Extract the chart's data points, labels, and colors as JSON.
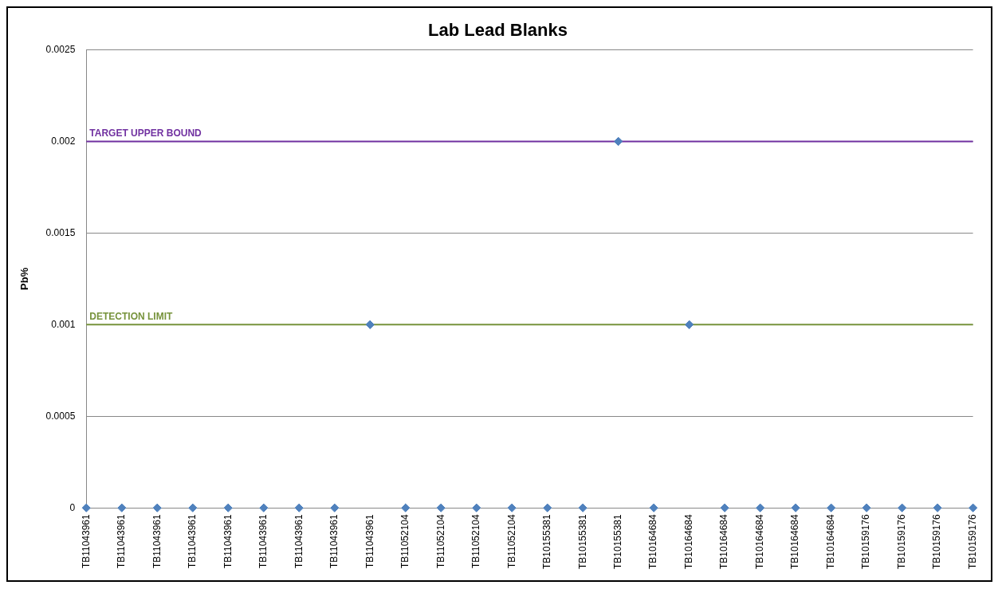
{
  "chart_data": {
    "type": "scatter",
    "title": "Lab Lead Blanks",
    "ylabel": "Pb%",
    "categories": [
      "TB11043961",
      "TB11043961",
      "TB11043961",
      "TB11043961",
      "TB11043961",
      "TB11043961",
      "TB11043961",
      "TB11043961",
      "TB11043961",
      "TB11052104",
      "TB11052104",
      "TB11052104",
      "TB11052104",
      "TB10155381",
      "TB10155381",
      "TB10155381",
      "TB10164684",
      "TB10164684",
      "TB10164684",
      "TB10164684",
      "TB10164684",
      "TB10164684",
      "TB10159176",
      "TB10159176",
      "TB10159176",
      "TB10159176"
    ],
    "series": [
      {
        "color": "#4f81bd",
        "values": [
          0,
          0,
          0,
          0,
          0,
          0,
          0,
          0,
          0.001,
          0,
          0,
          0,
          0,
          0,
          0,
          0.002,
          0,
          0.001,
          0,
          0,
          0,
          0,
          0,
          0,
          0,
          0
        ]
      }
    ],
    "ylim": [
      0,
      0.0025
    ],
    "yticks": [
      0,
      0.0005,
      0.001,
      0.0015,
      0.002,
      0.0025
    ],
    "grid": "y",
    "marker": "diamond",
    "legend": false,
    "ref_lines": [
      {
        "axis": "y",
        "value": 0.002,
        "label": "TARGET UPPER BOUND",
        "color": "#7030a0"
      },
      {
        "axis": "y",
        "value": 0.001,
        "label": "DETECTION LIMIT",
        "color": "#77933c"
      }
    ]
  }
}
